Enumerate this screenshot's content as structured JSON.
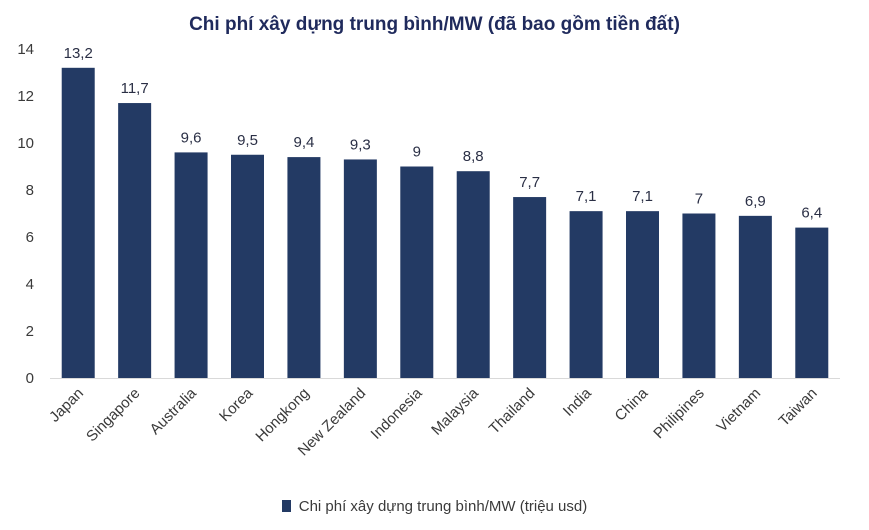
{
  "chart_data": {
    "type": "bar",
    "title": "Chi phí xây dựng trung bình/MW (đã bao gồm tiền đất)",
    "categories": [
      "Japan",
      "Singapore",
      "Australia",
      "Korea",
      "Hongkong",
      "New Zealand",
      "Indonesia",
      "Malaysia",
      "Thailand",
      "India",
      "China",
      "Philipines",
      "Vietnam",
      "Taiwan"
    ],
    "series": [
      {
        "name": "Chi phí xây dựng trung bình/MW (triệu usd)",
        "values": [
          13.2,
          11.7,
          9.6,
          9.5,
          9.4,
          9.3,
          9,
          8.8,
          7.7,
          7.1,
          7.1,
          7,
          6.9,
          6.4
        ],
        "data_labels": [
          "13,2",
          "11,7",
          "9,6",
          "9,5",
          "9,4",
          "9,3",
          "9",
          "8,8",
          "7,7",
          "7,1",
          "7,1",
          "7",
          "6,9",
          "6,4"
        ]
      }
    ],
    "ylim": [
      0,
      14
    ],
    "yticks": [
      0,
      2,
      4,
      6,
      8,
      10,
      12,
      14
    ],
    "grid": false,
    "legend_position": "bottom",
    "bar_color": "#233a64"
  }
}
